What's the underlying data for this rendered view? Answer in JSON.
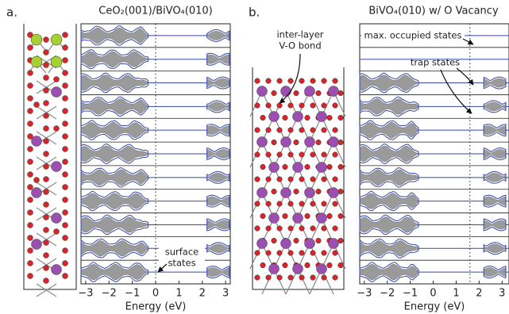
{
  "panels": [
    {
      "label": "a.",
      "title": "CeO₂(001)/BiVO₄(010)",
      "xlabel": "Energy (eV)",
      "xlim": [
        -3.2,
        3.2
      ],
      "xticks": [
        {
          "value": -3,
          "label": "−3"
        },
        {
          "value": -2,
          "label": "−2"
        },
        {
          "value": -1,
          "label": "−1"
        },
        0,
        1,
        2,
        3
      ],
      "reference_line": 0,
      "annotations": [
        {
          "lines": [
            "surface",
            "states"
          ]
        }
      ]
    },
    {
      "label": "b.",
      "title": "BiVO₄(010) w/ O Vacancy",
      "xlabel": "Energy (eV)",
      "xlim": [
        -3.2,
        3.3
      ],
      "xticks": [
        {
          "value": -3,
          "label": "−3"
        },
        {
          "value": -2,
          "label": "−2"
        },
        {
          "value": -1,
          "label": "−1"
        },
        0,
        1,
        2,
        3
      ],
      "reference_line": 1.6,
      "annotations": [
        {
          "lines": [
            "inter-layer",
            "V-O bond"
          ]
        },
        {
          "lines": [
            "max. occupied states"
          ]
        },
        {
          "lines": [
            "trap states"
          ]
        }
      ]
    }
  ]
}
